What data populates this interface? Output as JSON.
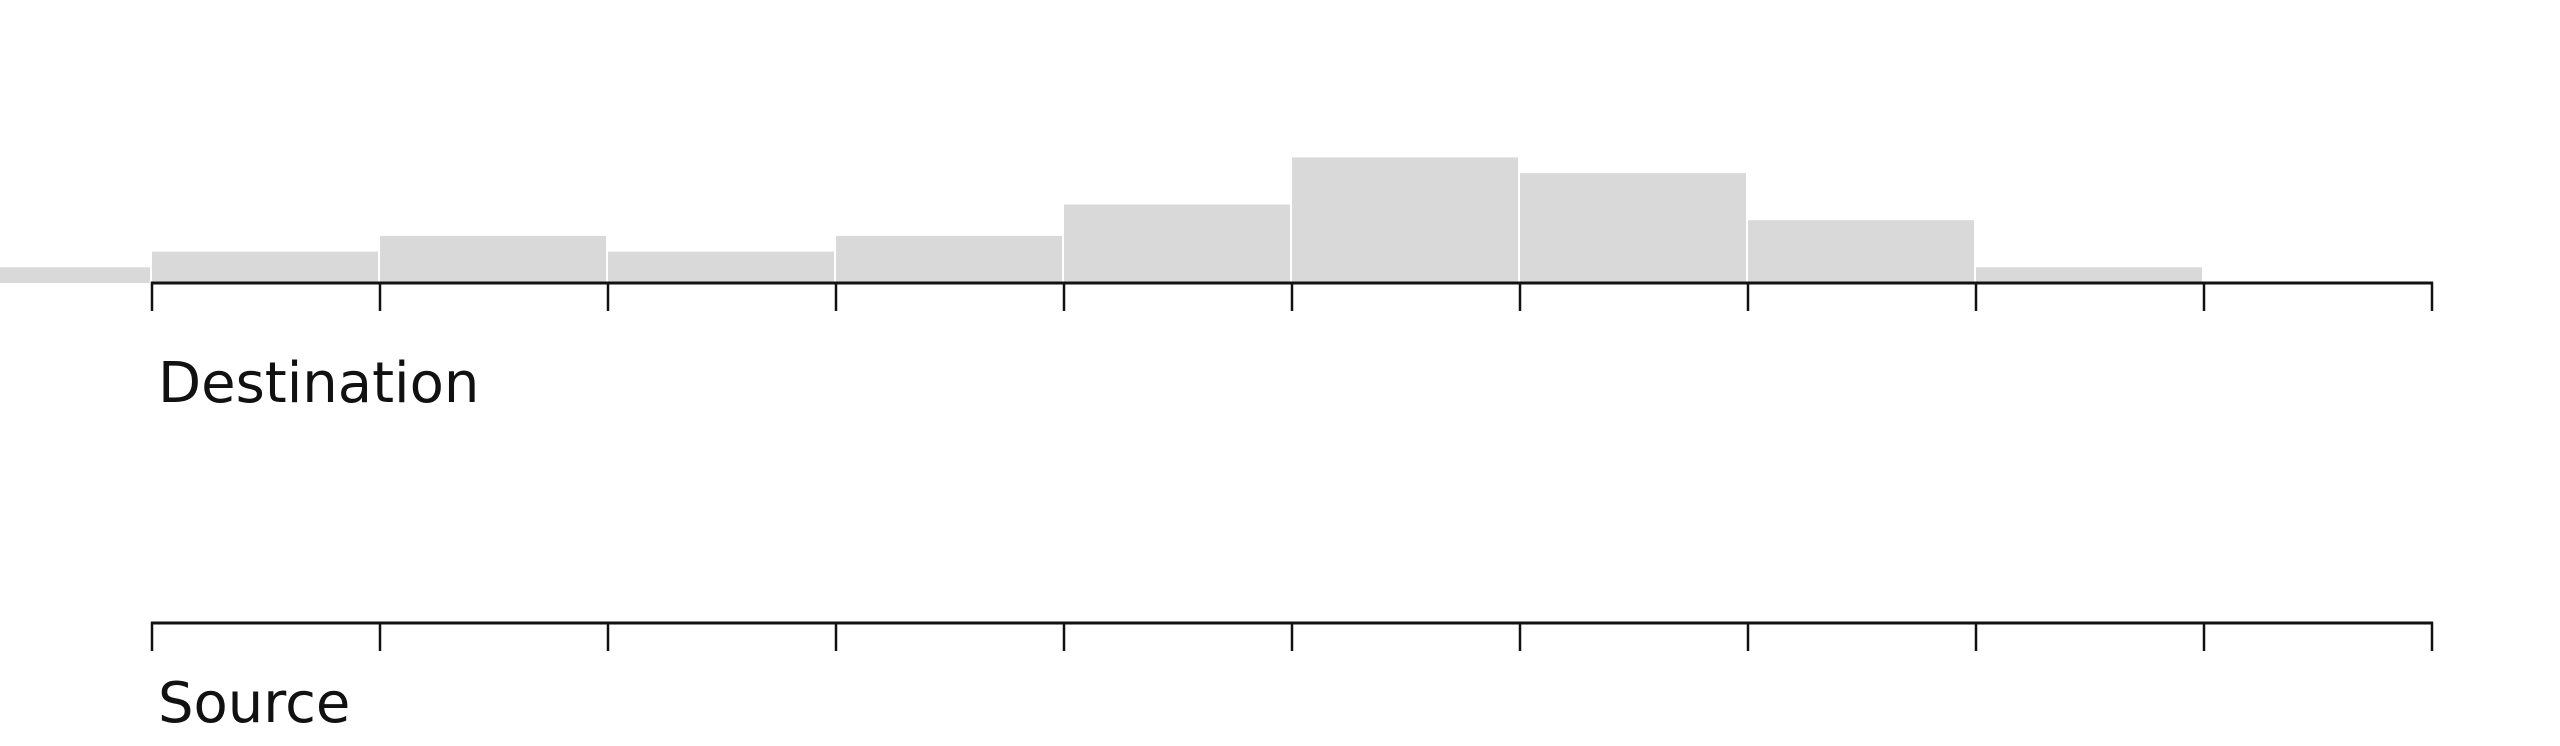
{
  "labels": {
    "destination": "Destination",
    "source": "Source"
  },
  "colors": {
    "bar_fill": "#d9d9d9",
    "axis": "#111111",
    "background": "#ffffff"
  },
  "chart_data": [
    {
      "type": "bar",
      "name": "destination-histogram",
      "title": "",
      "xlabel": "Destination",
      "ylabel": "",
      "bins": [
        {
          "start": -0.67,
          "end": 0,
          "count": 1
        },
        {
          "start": 0,
          "end": 1,
          "count": 2
        },
        {
          "start": 1,
          "end": 2,
          "count": 3
        },
        {
          "start": 2,
          "end": 3,
          "count": 2
        },
        {
          "start": 3,
          "end": 4,
          "count": 3
        },
        {
          "start": 4,
          "end": 5,
          "count": 5
        },
        {
          "start": 5,
          "end": 6,
          "count": 8
        },
        {
          "start": 6,
          "end": 7,
          "count": 7
        },
        {
          "start": 7,
          "end": 8,
          "count": 4
        },
        {
          "start": 8,
          "end": 9,
          "count": 1
        }
      ],
      "x_ticks": [
        0,
        1,
        2,
        3,
        4,
        5,
        6,
        7,
        8,
        9,
        10
      ],
      "xlim": [
        -0.67,
        10
      ],
      "ylim": [
        0,
        8
      ],
      "tick_labels_shown": false,
      "grid": false
    },
    {
      "type": "bar",
      "name": "source-histogram",
      "title": "",
      "xlabel": "Source",
      "ylabel": "",
      "bins": [],
      "x_ticks": [
        0,
        1,
        2,
        3,
        4,
        5,
        6,
        7,
        8,
        9,
        10
      ],
      "xlim": [
        -0.67,
        10
      ],
      "ylim": [
        0,
        8
      ],
      "tick_labels_shown": false,
      "grid": false
    }
  ]
}
